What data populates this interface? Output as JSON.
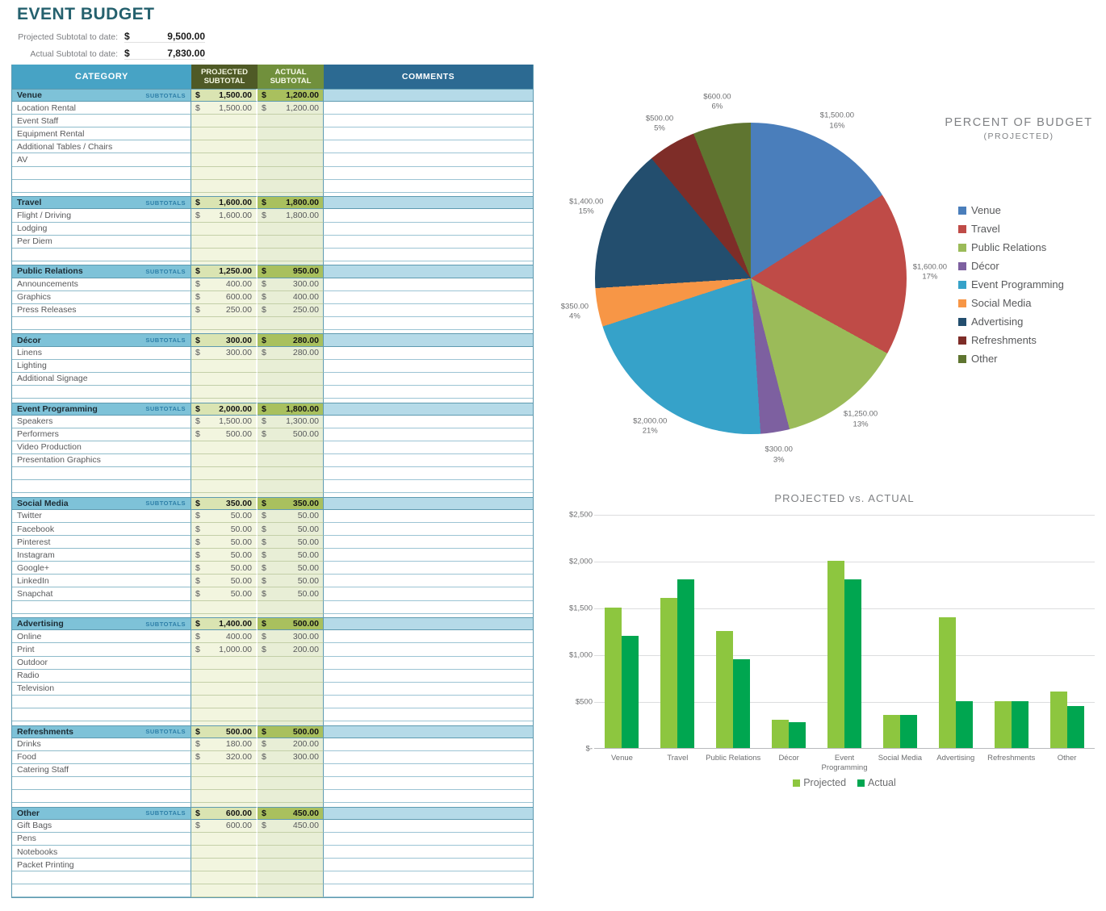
{
  "title": "EVENT BUDGET",
  "summary": {
    "projected_label": "Projected Subtotal to date:",
    "projected_currency": "$",
    "projected_value": "9,500.00",
    "actual_label": "Actual Subtotal to date:",
    "actual_currency": "$",
    "actual_value": "7,830.00"
  },
  "table": {
    "headers": {
      "category": "CATEGORY",
      "projected": "PROJECTED SUBTOTAL",
      "actual": "ACTUAL SUBTOTAL",
      "comments": "COMMENTS"
    },
    "subtotals_label": "SUBTOTALS",
    "currency": "$",
    "sections": [
      {
        "name": "Venue",
        "projected_subtotal": "1,500.00",
        "actual_subtotal": "1,200.00",
        "items": [
          {
            "label": "Location Rental",
            "projected": "1,500.00",
            "actual": "1,200.00"
          },
          {
            "label": "Event Staff"
          },
          {
            "label": "Equipment Rental"
          },
          {
            "label": "Additional Tables / Chairs"
          },
          {
            "label": "AV"
          },
          {
            "label": ""
          },
          {
            "label": ""
          }
        ]
      },
      {
        "name": "Travel",
        "projected_subtotal": "1,600.00",
        "actual_subtotal": "1,800.00",
        "items": [
          {
            "label": "Flight / Driving",
            "projected": "1,600.00",
            "actual": "1,800.00"
          },
          {
            "label": "Lodging"
          },
          {
            "label": "Per Diem"
          },
          {
            "label": ""
          }
        ]
      },
      {
        "name": "Public Relations",
        "projected_subtotal": "1,250.00",
        "actual_subtotal": "950.00",
        "items": [
          {
            "label": "Announcements",
            "projected": "400.00",
            "actual": "300.00"
          },
          {
            "label": "Graphics",
            "projected": "600.00",
            "actual": "400.00"
          },
          {
            "label": "Press Releases",
            "projected": "250.00",
            "actual": "250.00"
          },
          {
            "label": ""
          }
        ]
      },
      {
        "name": "Décor",
        "projected_subtotal": "300.00",
        "actual_subtotal": "280.00",
        "items": [
          {
            "label": "Linens",
            "projected": "300.00",
            "actual": "280.00"
          },
          {
            "label": "Lighting"
          },
          {
            "label": "Additional Signage"
          },
          {
            "label": ""
          }
        ]
      },
      {
        "name": "Event Programming",
        "projected_subtotal": "2,000.00",
        "actual_subtotal": "1,800.00",
        "items": [
          {
            "label": "Speakers",
            "projected": "1,500.00",
            "actual": "1,300.00"
          },
          {
            "label": "Performers",
            "projected": "500.00",
            "actual": "500.00"
          },
          {
            "label": "Video Production"
          },
          {
            "label": "Presentation Graphics"
          },
          {
            "label": ""
          },
          {
            "label": ""
          }
        ]
      },
      {
        "name": "Social Media",
        "projected_subtotal": "350.00",
        "actual_subtotal": "350.00",
        "items": [
          {
            "label": "Twitter",
            "projected": "50.00",
            "actual": "50.00"
          },
          {
            "label": "Facebook",
            "projected": "50.00",
            "actual": "50.00"
          },
          {
            "label": "Pinterest",
            "projected": "50.00",
            "actual": "50.00"
          },
          {
            "label": "Instagram",
            "projected": "50.00",
            "actual": "50.00"
          },
          {
            "label": "Google+",
            "projected": "50.00",
            "actual": "50.00"
          },
          {
            "label": "LinkedIn",
            "projected": "50.00",
            "actual": "50.00"
          },
          {
            "label": "Snapchat",
            "projected": "50.00",
            "actual": "50.00"
          },
          {
            "label": ""
          }
        ]
      },
      {
        "name": "Advertising",
        "projected_subtotal": "1,400.00",
        "actual_subtotal": "500.00",
        "items": [
          {
            "label": "Online",
            "projected": "400.00",
            "actual": "300.00"
          },
          {
            "label": "Print",
            "projected": "1,000.00",
            "actual": "200.00"
          },
          {
            "label": "Outdoor"
          },
          {
            "label": "Radio"
          },
          {
            "label": "Television"
          },
          {
            "label": ""
          },
          {
            "label": ""
          }
        ]
      },
      {
        "name": "Refreshments",
        "projected_subtotal": "500.00",
        "actual_subtotal": "500.00",
        "items": [
          {
            "label": "Drinks",
            "projected": "180.00",
            "actual": "200.00"
          },
          {
            "label": "Food",
            "projected": "320.00",
            "actual": "300.00"
          },
          {
            "label": "Catering Staff"
          },
          {
            "label": ""
          },
          {
            "label": ""
          }
        ]
      },
      {
        "name": "Other",
        "projected_subtotal": "600.00",
        "actual_subtotal": "450.00",
        "items": [
          {
            "label": "Gift Bags",
            "projected": "600.00",
            "actual": "450.00"
          },
          {
            "label": "Pens"
          },
          {
            "label": "Notebooks"
          },
          {
            "label": "Packet Printing"
          },
          {
            "label": ""
          },
          {
            "label": ""
          }
        ]
      }
    ]
  },
  "chart_data": [
    {
      "type": "pie",
      "title": "PERCENT OF BUDGET",
      "subtitle": "(PROJECTED)",
      "legend_position": "right",
      "slices": [
        {
          "label": "Venue",
          "value_label": "$1,500.00",
          "pct": 16,
          "pct_label": "16%",
          "color": "#4a7ebb"
        },
        {
          "label": "Travel",
          "value_label": "$1,600.00",
          "pct": 17,
          "pct_label": "17%",
          "color": "#bf4b47"
        },
        {
          "label": "Public Relations",
          "value_label": "$1,250.00",
          "pct": 13,
          "pct_label": "13%",
          "color": "#9bbb59"
        },
        {
          "label": "Décor",
          "value_label": "$300.00",
          "pct": 3,
          "pct_label": "3%",
          "color": "#7d60a0"
        },
        {
          "label": "Event Programming",
          "value_label": "$2,000.00",
          "pct": 21,
          "pct_label": "21%",
          "color": "#36a2c9"
        },
        {
          "label": "Social Media",
          "value_label": "$350.00",
          "pct": 4,
          "pct_label": "4%",
          "color": "#f79646"
        },
        {
          "label": "Advertising",
          "value_label": "$1,400.00",
          "pct": 15,
          "pct_label": "15%",
          "color": "#234e6e"
        },
        {
          "label": "Refreshments",
          "value_label": "$500.00",
          "pct": 5,
          "pct_label": "5%",
          "color": "#7e2d28"
        },
        {
          "label": "Other",
          "value_label": "$600.00",
          "pct": 6,
          "pct_label": "6%",
          "color": "#5f7530"
        }
      ]
    },
    {
      "type": "bar",
      "title": "PROJECTED vs. ACTUAL",
      "categories": [
        "Venue",
        "Travel",
        "Public Relations",
        "Décor",
        "Event Programming",
        "Social Media",
        "Advertising",
        "Refreshments",
        "Other"
      ],
      "series": [
        {
          "name": "Projected",
          "color": "#8dc63f",
          "values": [
            1500,
            1600,
            1250,
            300,
            2000,
            350,
            1400,
            500,
            600
          ]
        },
        {
          "name": "Actual",
          "color": "#00a650",
          "values": [
            1200,
            1800,
            950,
            280,
            1800,
            350,
            500,
            500,
            450
          ]
        }
      ],
      "y_ticks": [
        "$2,500",
        "$2,000",
        "$1,500",
        "$1,000",
        "$500",
        "$-"
      ],
      "ylim": [
        0,
        2500
      ],
      "grid": true,
      "legend_position": "bottom"
    }
  ],
  "colors": {
    "title_text": "#25616e",
    "header_category_bg": "#47a3c5",
    "header_projected_bg": "#4f5a26",
    "header_actual_bg": "#71903c",
    "header_comments_bg": "#2c6a92",
    "section_row_bg": "#7ec2d8",
    "section_projected_bg": "#dae4b2",
    "section_actual_bg": "#a9c05e",
    "item_projected_bg": "#f2f5df",
    "item_actual_bg": "#e8eed6",
    "table_border": "#5e9ab0"
  }
}
